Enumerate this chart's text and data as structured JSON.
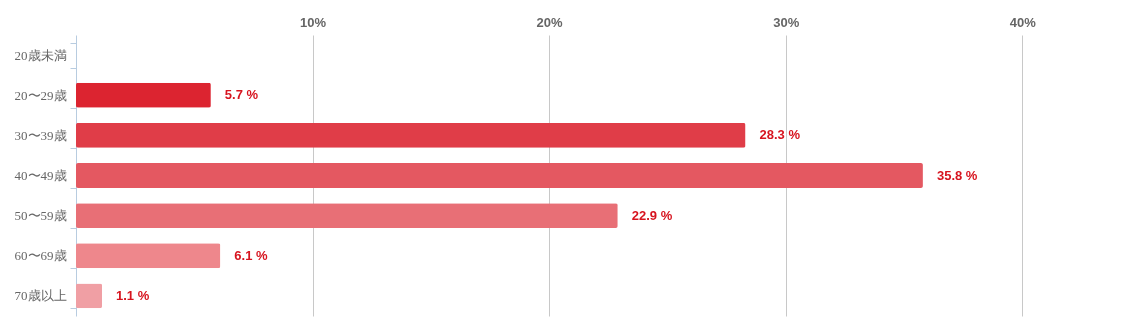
{
  "chart_data": {
    "type": "bar",
    "orientation": "horizontal",
    "categories": [
      "20歳未満",
      "20〜29歳",
      "30〜39歳",
      "40〜49歳",
      "50〜59歳",
      "60〜69歳",
      "70歳以上"
    ],
    "values": [
      null,
      5.7,
      28.3,
      35.8,
      22.9,
      6.1,
      1.1
    ],
    "colors": [
      null,
      "#dc2430",
      "#e03d48",
      "#e45861",
      "#e86f76",
      "#ee878c",
      "#f09fa4"
    ],
    "value_labels": [
      null,
      "5.7 %",
      "28.3 %",
      "35.8 %",
      "22.9 %",
      "6.1 %",
      "1.1 %"
    ],
    "xlim": [
      0,
      44.3
    ],
    "xticks": [
      {
        "value": 10,
        "label": "10%"
      },
      {
        "value": 20,
        "label": "20%"
      },
      {
        "value": 30,
        "label": "30%"
      },
      {
        "value": 40,
        "label": "40%"
      }
    ],
    "grid": "x"
  }
}
